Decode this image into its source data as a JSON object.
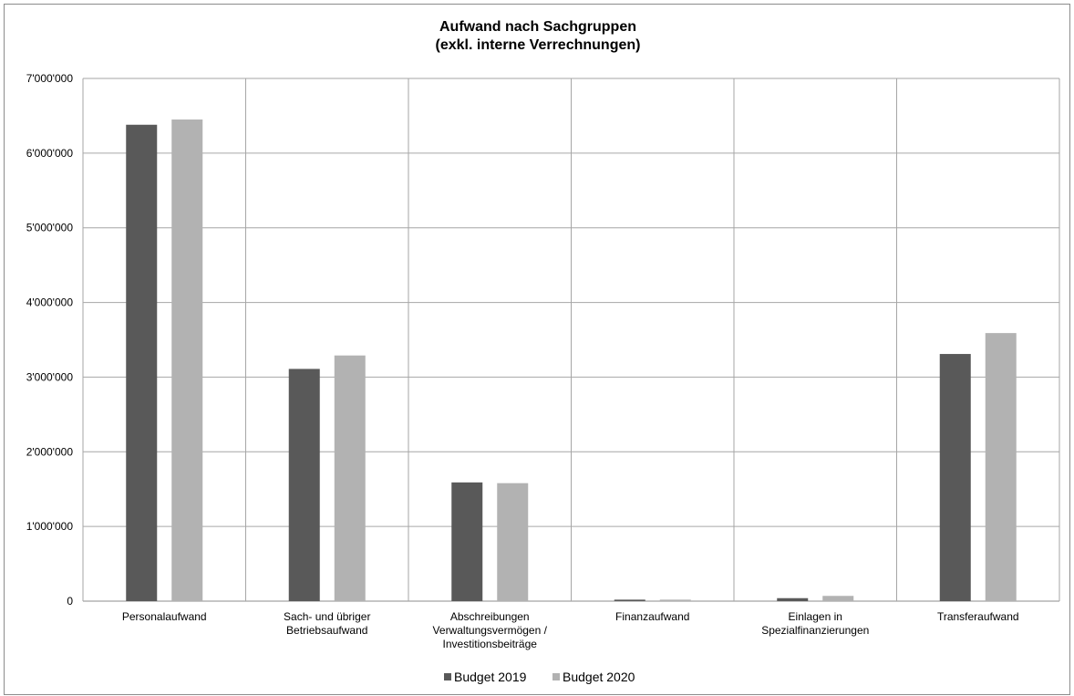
{
  "chart_data": {
    "type": "bar",
    "title": [
      "Aufwand nach Sachgruppen",
      "(exkl. interne Verrechnungen)"
    ],
    "categories": [
      [
        "Personalaufwand"
      ],
      [
        "Sach- und übriger",
        "Betriebsaufwand"
      ],
      [
        "Abschreibungen",
        "Verwaltungsvermögen /",
        "Investitionsbeiträge"
      ],
      [
        "Finanzaufwand"
      ],
      [
        "Einlagen in",
        "Spezialfinanzierungen"
      ],
      [
        "Transferaufwand"
      ]
    ],
    "series": [
      {
        "name": "Budget 2019",
        "color": "#595959",
        "values": [
          6380000,
          3110000,
          1590000,
          20000,
          40000,
          3310000
        ]
      },
      {
        "name": "Budget 2020",
        "color": "#b2b2b2",
        "values": [
          6450000,
          3290000,
          1580000,
          20000,
          70000,
          3590000
        ]
      }
    ],
    "ylim": [
      0,
      7000000
    ],
    "yticks": [
      {
        "value": 0,
        "label": "0"
      },
      {
        "value": 1000000,
        "label": "1'000'000"
      },
      {
        "value": 2000000,
        "label": "2'000'000"
      },
      {
        "value": 3000000,
        "label": "3'000'000"
      },
      {
        "value": 4000000,
        "label": "4'000'000"
      },
      {
        "value": 5000000,
        "label": "5'000'000"
      },
      {
        "value": 6000000,
        "label": "6'000'000"
      },
      {
        "value": 7000000,
        "label": "7'000'000"
      }
    ],
    "xlabel": "",
    "ylabel": "",
    "grid": true,
    "legend_position": "bottom"
  }
}
